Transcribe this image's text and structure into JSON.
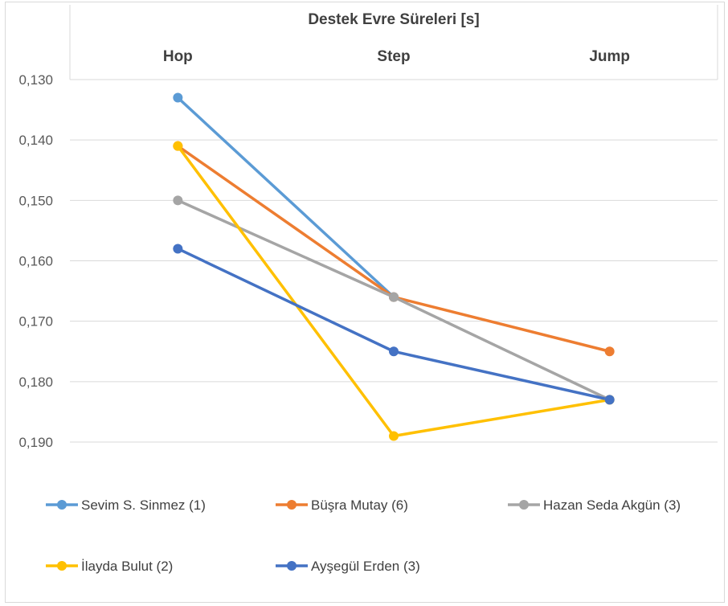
{
  "chart_data": {
    "type": "line",
    "title": "Destek Evre Süreleri  [s]",
    "categories": [
      "Hop",
      "Step",
      "Jump"
    ],
    "y_axis": {
      "reversed": true,
      "min": 0.13,
      "max": 0.19,
      "step": 0.01,
      "tick_labels": [
        "0,130",
        "0,140",
        "0,150",
        "0,160",
        "0,170",
        "0,180",
        "0,190"
      ]
    },
    "category_axis_position": "top",
    "grid": true,
    "legend_position": "bottom",
    "series": [
      {
        "name": "Sevim S. Sinmez (1)",
        "color": "#5B9BD5",
        "values": [
          0.133,
          0.166,
          null
        ]
      },
      {
        "name": "Büşra Mutay (6)",
        "color": "#ED7D31",
        "values": [
          0.141,
          0.166,
          0.175
        ]
      },
      {
        "name": "Hazan Seda Akgün (3)",
        "color": "#A5A5A5",
        "values": [
          0.15,
          0.166,
          0.183
        ]
      },
      {
        "name": "İlayda Bulut (2)",
        "color": "#FFC000",
        "values": [
          0.141,
          0.189,
          0.183
        ]
      },
      {
        "name": "Ayşegül Erden (3)",
        "color": "#4472C4",
        "values": [
          0.158,
          0.175,
          0.183
        ]
      }
    ]
  }
}
